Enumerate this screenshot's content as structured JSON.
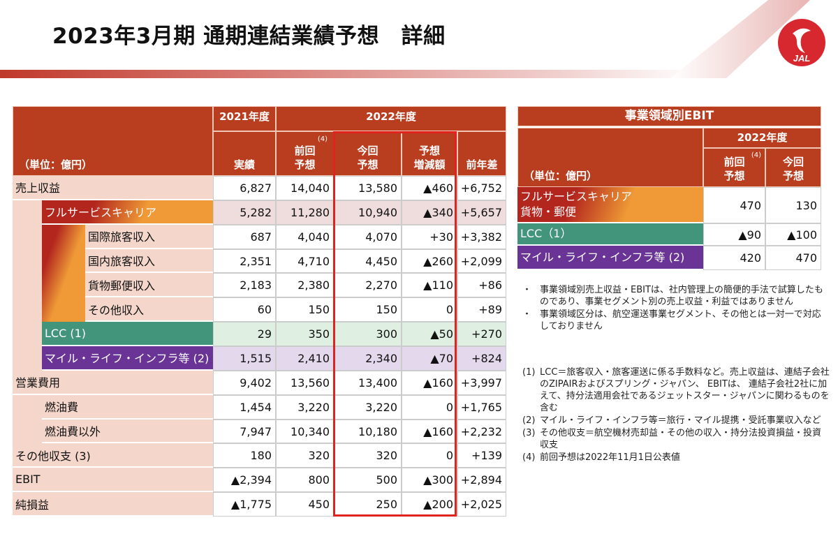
{
  "title": "2023年3月期 通期連結業績予想　詳細",
  "logo": {
    "text": "JAL",
    "color": "#d7282f"
  },
  "colors": {
    "header": "#b93e20",
    "label_bg": "#f4d6cb",
    "full_service": "#ef9a36",
    "lcc": "#42947a",
    "mile": "#6a3497",
    "highlight_frame": "#e0231e"
  },
  "main_table": {
    "unit": "（単位：億円）",
    "year_2021": "2021年度",
    "year_2022": "2022年度",
    "columns": [
      "実績",
      "前回\n予想",
      "今回\n予想",
      "予想\n増減額",
      "前年差"
    ],
    "prev_note": "(4)",
    "rows": [
      {
        "label": "売上収益",
        "level": 0,
        "values": [
          "6,827",
          "14,040",
          "13,580",
          "▲460",
          "+6,752"
        ]
      },
      {
        "label": "フルサービスキャリア",
        "level": 1,
        "style": "fsc",
        "values": [
          "5,282",
          "11,280",
          "10,940",
          "▲340",
          "+5,657"
        ]
      },
      {
        "label": "国際旅客収入",
        "level": 2,
        "values": [
          "687",
          "4,040",
          "4,070",
          "+30",
          "+3,382"
        ]
      },
      {
        "label": "国内旅客収入",
        "level": 2,
        "values": [
          "2,351",
          "4,710",
          "4,450",
          "▲260",
          "+2,099"
        ]
      },
      {
        "label": "貨物郵便収入",
        "level": 2,
        "values": [
          "2,183",
          "2,380",
          "2,270",
          "▲110",
          "+86"
        ]
      },
      {
        "label": "その他収入",
        "level": 2,
        "values": [
          "60",
          "150",
          "150",
          "0",
          "+89"
        ]
      },
      {
        "label": "LCC (1)",
        "level": 1,
        "style": "lcc",
        "values": [
          "29",
          "350",
          "300",
          "▲50",
          "+270"
        ]
      },
      {
        "label": "マイル・ライフ・インフラ等 (2)",
        "level": 1,
        "style": "mile",
        "values": [
          "1,515",
          "2,410",
          "2,340",
          "▲70",
          "+824"
        ]
      },
      {
        "label": "営業費用",
        "level": 0,
        "values": [
          "9,402",
          "13,560",
          "13,400",
          "▲160",
          "+3,997"
        ]
      },
      {
        "label": "燃油費",
        "level": 1,
        "values": [
          "1,454",
          "3,220",
          "3,220",
          "0",
          "+1,765"
        ]
      },
      {
        "label": "燃油費以外",
        "level": 1,
        "values": [
          "7,947",
          "10,340",
          "10,180",
          "▲160",
          "+2,232"
        ]
      },
      {
        "label": "その他収支 (3)",
        "level": 0,
        "values": [
          "180",
          "320",
          "320",
          "0",
          "+139"
        ]
      },
      {
        "label": "EBIT",
        "level": 0,
        "values": [
          "▲2,394",
          "800",
          "500",
          "▲300",
          "+2,894"
        ]
      },
      {
        "label": "純損益",
        "level": 0,
        "values": [
          "▲1,775",
          "450",
          "250",
          "▲200",
          "+2,025"
        ]
      }
    ]
  },
  "ebit_table": {
    "title": "事業領域別EBIT",
    "unit": "（単位：億円）",
    "year": "2022年度",
    "columns": [
      "前回\n予想",
      "今回\n予想"
    ],
    "prev_note": "(4)",
    "rows": [
      {
        "label": "フルサービスキャリア\n貨物・郵便",
        "style": "fsc",
        "values": [
          "470",
          "130"
        ]
      },
      {
        "label": "LCC（1）",
        "style": "lcc",
        "values": [
          "▲90",
          "▲100"
        ]
      },
      {
        "label": "マイル・ライフ・インフラ等 (2)",
        "style": "mile",
        "values": [
          "420",
          "470"
        ]
      }
    ]
  },
  "bullets": [
    "事業領域別売上収益・EBITは、社内管理上の簡便的手法で試算したものであり、事業セグメント別の売上収益・利益ではありません",
    "事業領域区分は、航空運送事業セグメント、その他とは一対一で対応しておりません"
  ],
  "footnotes": [
    {
      "mark": "(1)",
      "text": "LCC＝旅客収入・旅客運送に係る手数料など。売上収益は、連結子会社のZIPAIRおよびスプリング・ジャパン、 EBITは、 連結子会社2社に加えて、持分法適用会社であるジェットスター・ジャパンに関わるものを含む"
    },
    {
      "mark": "(2)",
      "text": "マイル・ライフ・インフラ等＝旅行・マイル提携・受託事業収入など"
    },
    {
      "mark": "(3)",
      "text": "その他収支＝航空機材売却益・その他の収入・持分法投資損益・投資収支"
    },
    {
      "mark": "(4)",
      "text": "前回予想は2022年11月1日公表値"
    }
  ]
}
